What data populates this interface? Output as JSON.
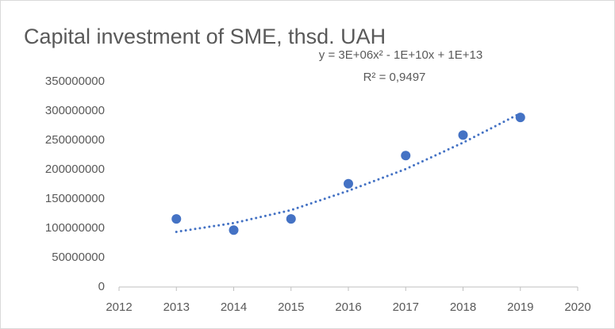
{
  "chart_data": {
    "type": "scatter",
    "title": "Capital investment of SME, thsd. UAH",
    "x": [
      2013,
      2014,
      2015,
      2016,
      2017,
      2018,
      2019
    ],
    "series": [
      {
        "color": "#4472c4",
        "values": [
          116000000,
          97000000,
          116000000,
          176000000,
          224000000,
          259000000,
          289000000
        ]
      }
    ],
    "trendline": {
      "equation": "y = 3E+06x² - 1E+10x + 1E+13",
      "r_squared": "R² = 0,9497",
      "color": "#4472c4",
      "values": [
        94000000,
        109000000,
        131000000,
        164000000,
        201000000,
        246000000,
        296000000
      ]
    },
    "xlim": [
      2012,
      2020
    ],
    "xticks": [
      2012,
      2013,
      2014,
      2015,
      2016,
      2017,
      2018,
      2019,
      2020
    ],
    "ylim": [
      0,
      350000000
    ],
    "yticks": [
      0,
      50000000,
      100000000,
      150000000,
      200000000,
      250000000,
      300000000,
      350000000
    ],
    "grid": false
  }
}
